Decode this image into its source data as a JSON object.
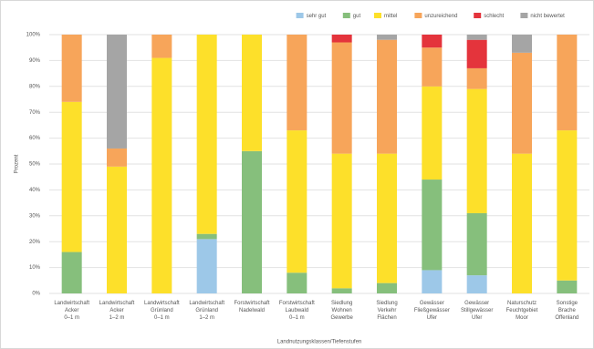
{
  "chart_data": {
    "type": "stacked_bar",
    "y_label": "Prozent",
    "x_label": "Landnutzungsklassen/Tiefenstufen",
    "categories": [
      "Landwirtschaft\nAcker\n0–1 m",
      "Landwirtschaft\nAcker\n1–2 m",
      "Landwirtschaft\nGrünland\n0–1 m",
      "Landwirtschaft\nGrünland\n1–2 m",
      "Forstwirtschaft\nNadelwald",
      "Forstwirtschaft\nLaubwald\n0–1 m",
      "Siedlung\nWohnen\nGewerbe",
      "Siedlung\nVerkehr\nFlächen",
      "Gewässer\nFließgewässer\nUfer",
      "Gewässer\nStillgewässer\nUfer",
      "Naturschutz\nFeuchtgebiet\nMoor",
      "Sonstige\nBrache\nOffenland"
    ],
    "series": [
      {
        "name": "sehr gut",
        "color": "#9dc8e8",
        "values": [
          0,
          0,
          0,
          21,
          0,
          0,
          0,
          0,
          9,
          7,
          0,
          0
        ]
      },
      {
        "name": "gut",
        "color": "#86bf7c",
        "values": [
          16,
          0,
          0,
          2,
          55,
          8,
          2,
          4,
          35,
          24,
          0,
          5
        ]
      },
      {
        "name": "mittel",
        "color": "#fde02a",
        "values": [
          58,
          49,
          91,
          77,
          45,
          55,
          52,
          50,
          36,
          48,
          54,
          58
        ]
      },
      {
        "name": "unzureichend",
        "color": "#f7a55a",
        "values": [
          26,
          7,
          9,
          0,
          0,
          37,
          43,
          44,
          15,
          8,
          39,
          37
        ]
      },
      {
        "name": "schlecht",
        "color": "#e4343c",
        "values": [
          0,
          0,
          0,
          0,
          0,
          0,
          3,
          0,
          5,
          11,
          0,
          0
        ]
      },
      {
        "name": "nicht bewertet",
        "color": "#a5a5a5",
        "values": [
          0,
          44,
          0,
          0,
          0,
          0,
          0,
          2,
          0,
          2,
          7,
          0
        ]
      }
    ],
    "ylim": [
      0,
      100
    ],
    "yticks": [
      {
        "value": 0,
        "label": "0%"
      },
      {
        "value": 10,
        "label": "10%"
      },
      {
        "value": 20,
        "label": "20%"
      },
      {
        "value": 30,
        "label": "30%"
      },
      {
        "value": 40,
        "label": "40%"
      },
      {
        "value": 50,
        "label": "50%"
      },
      {
        "value": 60,
        "label": "60%"
      },
      {
        "value": 70,
        "label": "70%"
      },
      {
        "value": 80,
        "label": "80%"
      },
      {
        "value": 90,
        "label": "90%"
      },
      {
        "value": 100,
        "label": "100%"
      }
    ],
    "grid": true,
    "legend": "top-right"
  }
}
